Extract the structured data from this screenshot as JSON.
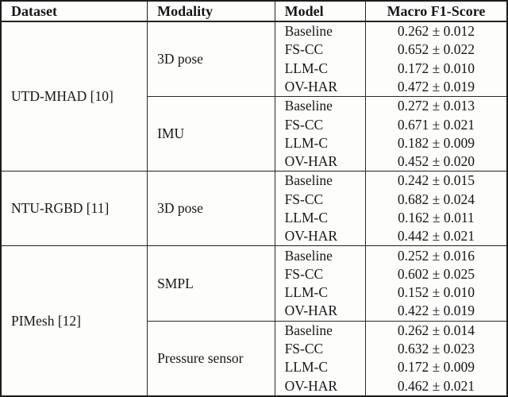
{
  "table": {
    "headers": {
      "dataset": "Dataset",
      "modality": "Modality",
      "model": "Model",
      "score": "Macro F1-Score"
    },
    "groups": [
      {
        "dataset": "UTD-MHAD [10]",
        "modalities": [
          {
            "name": "3D pose",
            "rows": [
              {
                "model": "Baseline",
                "score": "0.262 ± 0.012"
              },
              {
                "model": "FS-CC",
                "score": "0.652 ± 0.022"
              },
              {
                "model": "LLM-C",
                "score": "0.172 ± 0.010"
              },
              {
                "model": "OV-HAR",
                "score": "0.472 ± 0.019"
              }
            ]
          },
          {
            "name": "IMU",
            "rows": [
              {
                "model": "Baseline",
                "score": "0.272 ± 0.013"
              },
              {
                "model": "FS-CC",
                "score": "0.671 ± 0.021"
              },
              {
                "model": "LLM-C",
                "score": "0.182 ± 0.009"
              },
              {
                "model": "OV-HAR",
                "score": "0.452 ± 0.020"
              }
            ]
          }
        ]
      },
      {
        "dataset": "NTU-RGBD [11]",
        "modalities": [
          {
            "name": "3D pose",
            "rows": [
              {
                "model": "Baseline",
                "score": "0.242 ± 0.015"
              },
              {
                "model": "FS-CC",
                "score": "0.682 ± 0.024"
              },
              {
                "model": "LLM-C",
                "score": "0.162 ± 0.011"
              },
              {
                "model": "OV-HAR",
                "score": "0.442 ± 0.021"
              }
            ]
          }
        ]
      },
      {
        "dataset": "PIMesh [12]",
        "modalities": [
          {
            "name": "SMPL",
            "rows": [
              {
                "model": "Baseline",
                "score": "0.252 ± 0.016"
              },
              {
                "model": "FS-CC",
                "score": "0.602 ± 0.025"
              },
              {
                "model": "LLM-C",
                "score": "0.152 ± 0.010"
              },
              {
                "model": "OV-HAR",
                "score": "0.422 ± 0.019"
              }
            ]
          },
          {
            "name": "Pressure sensor",
            "rows": [
              {
                "model": "Baseline",
                "score": "0.262 ± 0.014"
              },
              {
                "model": "FS-CC",
                "score": "0.632 ± 0.023"
              },
              {
                "model": "LLM-C",
                "score": "0.172 ± 0.009"
              },
              {
                "model": "OV-HAR",
                "score": "0.462 ± 0.021"
              }
            ]
          }
        ]
      }
    ]
  }
}
